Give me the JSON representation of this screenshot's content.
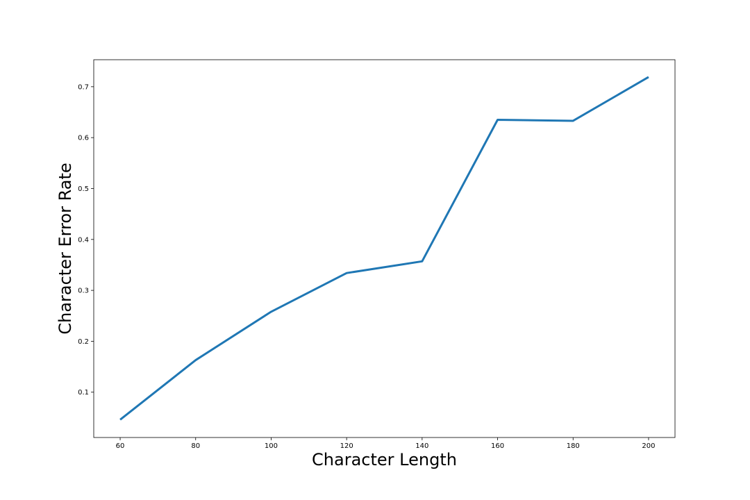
{
  "chart_data": {
    "type": "line",
    "title": "",
    "xlabel": "Character Length",
    "ylabel": "Character Error Rate",
    "x": [
      60,
      80,
      100,
      120,
      140,
      160,
      180,
      200
    ],
    "series": [
      {
        "values": [
          0.046,
          0.163,
          0.258,
          0.334,
          0.357,
          0.635,
          0.633,
          0.719
        ],
        "color": "#1f77b4"
      }
    ],
    "xlim": [
      53,
      207
    ],
    "ylim": [
      0.011,
      0.753
    ],
    "xticks": [
      60,
      80,
      100,
      120,
      140,
      160,
      180,
      200
    ],
    "yticks": [
      0.1,
      0.2,
      0.3,
      0.4,
      0.5,
      0.6,
      0.7
    ],
    "xtick_labels": [
      "60",
      "80",
      "100",
      "120",
      "140",
      "160",
      "180",
      "200"
    ],
    "ytick_labels": [
      "0.1",
      "0.2",
      "0.3",
      "0.4",
      "0.5",
      "0.6",
      "0.7"
    ],
    "grid": false,
    "legend": "none"
  }
}
